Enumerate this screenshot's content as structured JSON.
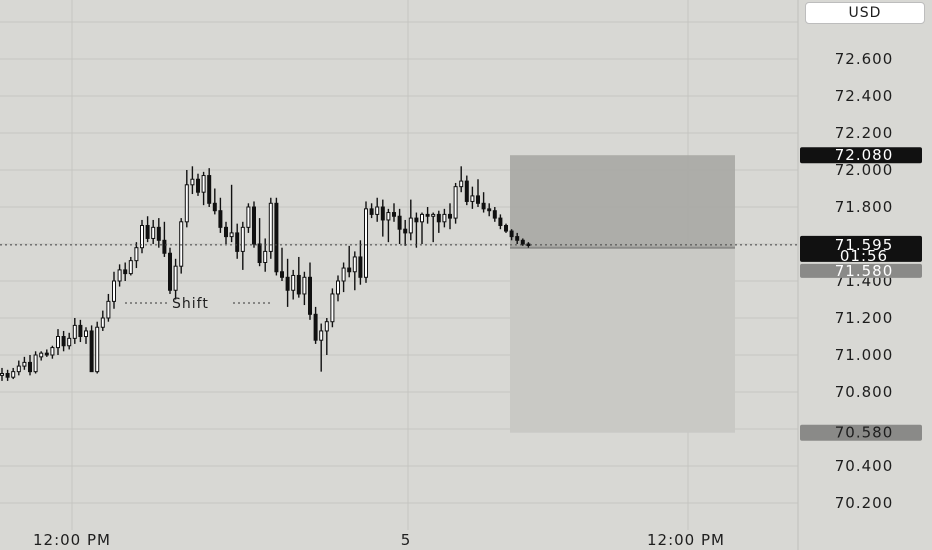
{
  "currency": "USD",
  "chart_data": {
    "type": "candlestick",
    "y_ticks": [
      "72.600",
      "72.400",
      "72.200",
      "72.000",
      "71.800",
      "71.400",
      "71.200",
      "71.000",
      "70.800",
      "70.400",
      "70.200"
    ],
    "y_range": [
      70.1,
      72.7
    ],
    "x_labels": [
      "12:00 PM",
      "5",
      "12:00 PM"
    ],
    "price_tags": {
      "target": "72.080",
      "last": "71.595",
      "countdown": "01:56",
      "entry": "71.580",
      "stop": "70.580"
    },
    "annotation": "Shift",
    "position": {
      "target": 72.08,
      "entry": 71.58,
      "stop": 70.58
    },
    "candles": [
      [
        70.89,
        70.93,
        70.86,
        70.9
      ],
      [
        70.9,
        70.92,
        70.86,
        70.88
      ],
      [
        70.88,
        70.93,
        70.87,
        70.91
      ],
      [
        70.91,
        70.97,
        70.89,
        70.94
      ],
      [
        70.94,
        70.99,
        70.92,
        70.96
      ],
      [
        70.96,
        71.0,
        70.89,
        70.91
      ],
      [
        70.91,
        71.02,
        70.9,
        71.0
      ],
      [
        70.99,
        71.02,
        70.97,
        71.01
      ],
      [
        71.01,
        71.03,
        70.99,
        71.0
      ],
      [
        71.0,
        71.05,
        70.98,
        71.04
      ],
      [
        71.04,
        71.14,
        71.0,
        71.1
      ],
      [
        71.1,
        71.13,
        71.02,
        71.05
      ],
      [
        71.05,
        71.12,
        71.03,
        71.09
      ],
      [
        71.09,
        71.2,
        71.06,
        71.16
      ],
      [
        71.16,
        71.19,
        71.07,
        71.1
      ],
      [
        71.1,
        71.15,
        71.06,
        71.13
      ],
      [
        71.13,
        71.16,
        70.91,
        70.91
      ],
      [
        70.91,
        71.18,
        70.9,
        71.15
      ],
      [
        71.15,
        71.24,
        71.13,
        71.2
      ],
      [
        71.2,
        71.33,
        71.18,
        71.29
      ],
      [
        71.29,
        71.45,
        71.25,
        71.4
      ],
      [
        71.4,
        71.49,
        71.37,
        71.46
      ],
      [
        71.46,
        71.5,
        71.4,
        71.44
      ],
      [
        71.44,
        71.53,
        71.43,
        71.51
      ],
      [
        71.51,
        71.61,
        71.47,
        71.58
      ],
      [
        71.58,
        71.73,
        71.55,
        71.7
      ],
      [
        71.7,
        71.75,
        71.61,
        71.63
      ],
      [
        71.63,
        71.73,
        71.6,
        71.69
      ],
      [
        71.69,
        71.74,
        71.58,
        71.62
      ],
      [
        71.62,
        71.72,
        71.53,
        71.55
      ],
      [
        71.55,
        71.58,
        71.33,
        71.35
      ],
      [
        71.35,
        71.52,
        71.3,
        71.48
      ],
      [
        71.48,
        71.74,
        71.44,
        71.72
      ],
      [
        71.72,
        72.0,
        71.69,
        71.92
      ],
      [
        71.92,
        72.02,
        71.87,
        71.95
      ],
      [
        71.95,
        71.98,
        71.86,
        71.88
      ],
      [
        71.88,
        71.99,
        71.81,
        71.97
      ],
      [
        71.97,
        72.01,
        71.8,
        71.82
      ],
      [
        71.82,
        71.9,
        71.76,
        71.78
      ],
      [
        71.78,
        71.85,
        71.66,
        71.69
      ],
      [
        71.69,
        71.72,
        71.6,
        71.64
      ],
      [
        71.64,
        71.92,
        71.61,
        71.66
      ],
      [
        71.66,
        71.71,
        71.52,
        71.56
      ],
      [
        71.56,
        71.72,
        71.46,
        71.69
      ],
      [
        71.69,
        71.82,
        71.66,
        71.8
      ],
      [
        71.8,
        71.83,
        71.58,
        71.6
      ],
      [
        71.6,
        71.74,
        71.48,
        71.5
      ],
      [
        71.5,
        71.63,
        71.45,
        71.56
      ],
      [
        71.56,
        71.85,
        71.52,
        71.82
      ],
      [
        71.82,
        71.85,
        71.43,
        71.45
      ],
      [
        71.45,
        71.58,
        71.4,
        71.42
      ],
      [
        71.42,
        71.52,
        71.26,
        71.35
      ],
      [
        71.35,
        71.46,
        71.3,
        71.43
      ],
      [
        71.43,
        71.53,
        71.31,
        71.33
      ],
      [
        71.33,
        71.45,
        71.27,
        71.42
      ],
      [
        71.42,
        71.5,
        71.19,
        71.22
      ],
      [
        71.22,
        71.26,
        71.06,
        71.08
      ],
      [
        71.08,
        71.17,
        70.91,
        71.13
      ],
      [
        71.13,
        71.2,
        71.0,
        71.18
      ],
      [
        71.18,
        71.36,
        71.15,
        71.33
      ],
      [
        71.33,
        71.43,
        71.29,
        71.4
      ],
      [
        71.4,
        71.5,
        71.34,
        71.47
      ],
      [
        71.47,
        71.59,
        71.42,
        71.45
      ],
      [
        71.45,
        71.56,
        71.35,
        71.53
      ],
      [
        71.53,
        71.62,
        71.38,
        71.42
      ],
      [
        71.42,
        71.83,
        71.39,
        71.79
      ],
      [
        71.79,
        71.82,
        71.74,
        71.76
      ],
      [
        71.76,
        71.85,
        71.72,
        71.8
      ],
      [
        71.8,
        71.84,
        71.64,
        71.73
      ],
      [
        71.73,
        71.79,
        71.61,
        71.77
      ],
      [
        71.77,
        71.82,
        71.72,
        71.75
      ],
      [
        71.75,
        71.79,
        71.6,
        71.68
      ],
      [
        71.68,
        71.73,
        71.59,
        71.66
      ],
      [
        71.66,
        71.84,
        71.62,
        71.74
      ],
      [
        71.74,
        71.77,
        71.58,
        71.72
      ],
      [
        71.72,
        71.77,
        71.6,
        71.76
      ],
      [
        71.76,
        71.8,
        71.71,
        71.75
      ],
      [
        71.75,
        71.77,
        71.61,
        71.76
      ],
      [
        71.76,
        71.78,
        71.66,
        71.72
      ],
      [
        71.72,
        71.79,
        71.69,
        71.76
      ],
      [
        71.76,
        71.82,
        71.68,
        71.74
      ],
      [
        71.74,
        71.93,
        71.71,
        71.91
      ],
      [
        71.91,
        72.02,
        71.88,
        71.94
      ],
      [
        71.94,
        71.97,
        71.81,
        71.83
      ],
      [
        71.83,
        71.91,
        71.79,
        71.86
      ],
      [
        71.86,
        71.95,
        71.8,
        71.82
      ],
      [
        71.82,
        71.88,
        71.77,
        71.79
      ],
      [
        71.79,
        71.82,
        71.75,
        71.78
      ],
      [
        71.78,
        71.8,
        71.72,
        71.74
      ],
      [
        71.74,
        71.76,
        71.68,
        71.7
      ],
      [
        71.7,
        71.71,
        71.66,
        71.67
      ],
      [
        71.67,
        71.68,
        71.62,
        71.64
      ],
      [
        71.64,
        71.66,
        71.6,
        71.62
      ],
      [
        71.62,
        71.63,
        71.59,
        71.6
      ],
      [
        71.6,
        71.61,
        71.58,
        71.595
      ]
    ]
  }
}
